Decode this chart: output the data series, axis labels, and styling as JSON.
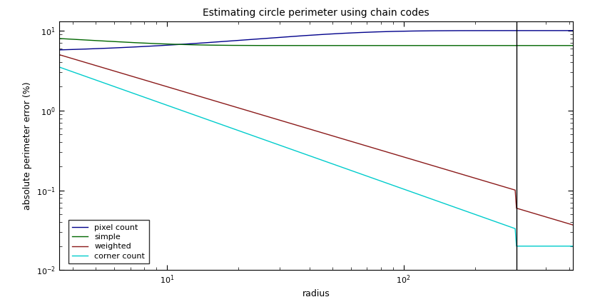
{
  "title": "Estimating circle perimeter using chain codes",
  "xlabel": "radius",
  "ylabel": "absolute perimeter error (%)",
  "ylim": [
    0.01,
    13.0
  ],
  "xlim": [
    3.5,
    520.0
  ],
  "vline_x": 300.0,
  "background_color": "#ffffff",
  "legend_labels": [
    "pixel count",
    "simple",
    "weighted",
    "corner count"
  ],
  "line_colors": [
    "#00008B",
    "#006600",
    "#8B1A1A",
    "#00CCCC"
  ],
  "title_fontsize": 10,
  "tick_fontsize": 8,
  "label_fontsize": 9,
  "legend_fontsize": 8
}
